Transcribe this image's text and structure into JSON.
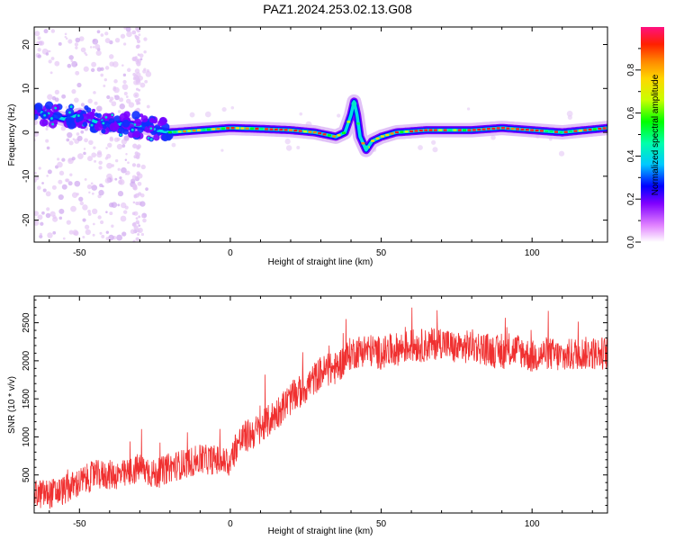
{
  "title": "PAZ1.2024.253.02.13.G08",
  "chart_data": [
    {
      "type": "heatmap",
      "xlabel": "Height of straight line (km)",
      "ylabel": "Frequency (Hz)",
      "xlim": [
        -65,
        125
      ],
      "ylim": [
        -25,
        24
      ],
      "xticks": [
        "-50",
        "0",
        "50",
        "100"
      ],
      "xtick_values": [
        -50,
        0,
        50,
        100
      ],
      "yticks": [
        "-20",
        "-10",
        "0",
        "10",
        "20"
      ],
      "ytick_values": [
        -20,
        -10,
        0,
        10,
        20
      ],
      "colorbar": {
        "label": "Normalized spectral amplitude",
        "ticks": [
          "0.0",
          "0.2",
          "0.4",
          "0.6",
          "0.8"
        ],
        "tick_values": [
          0.0,
          0.2,
          0.4,
          0.6,
          0.8
        ],
        "range": [
          0,
          1
        ]
      },
      "ridge": [
        {
          "x": -65,
          "f": 5.0
        },
        {
          "x": -60,
          "f": 4.0
        },
        {
          "x": -55,
          "f": 3.0
        },
        {
          "x": -50,
          "f": 4.0
        },
        {
          "x": -45,
          "f": 2.5
        },
        {
          "x": -40,
          "f": 1.5
        },
        {
          "x": -35,
          "f": 2.0
        },
        {
          "x": -30,
          "f": 1.5
        },
        {
          "x": -25,
          "f": 0.5
        },
        {
          "x": -20,
          "f": 0.0
        },
        {
          "x": -10,
          "f": 0.5
        },
        {
          "x": 0,
          "f": 1.0
        },
        {
          "x": 10,
          "f": 0.8
        },
        {
          "x": 20,
          "f": 0.5
        },
        {
          "x": 28,
          "f": 0.0
        },
        {
          "x": 35,
          "f": -1.0
        },
        {
          "x": 38,
          "f": 0.0
        },
        {
          "x": 40,
          "f": 4.0
        },
        {
          "x": 41,
          "f": 7.0
        },
        {
          "x": 42,
          "f": 4.0
        },
        {
          "x": 43,
          "f": -1.0
        },
        {
          "x": 45,
          "f": -4.0
        },
        {
          "x": 47,
          "f": -2.0
        },
        {
          "x": 50,
          "f": -1.0
        },
        {
          "x": 55,
          "f": 0.0
        },
        {
          "x": 65,
          "f": 0.5
        },
        {
          "x": 80,
          "f": 0.5
        },
        {
          "x": 90,
          "f": 1.0
        },
        {
          "x": 100,
          "f": 0.5
        },
        {
          "x": 110,
          "f": 0.0
        },
        {
          "x": 125,
          "f": 1.0
        }
      ]
    },
    {
      "type": "line",
      "xlabel": "Height of straight line (km)",
      "ylabel": "SNR (10 * v/v)",
      "xlim": [
        -65,
        125
      ],
      "ylim": [
        0,
        2850
      ],
      "xticks": [
        "-50",
        "0",
        "50",
        "100"
      ],
      "xtick_values": [
        -50,
        0,
        50,
        100
      ],
      "yticks": [
        "500",
        "1000",
        "1500",
        "2000",
        "2500"
      ],
      "ytick_values": [
        500,
        1000,
        1500,
        2000,
        2500
      ],
      "series": [
        {
          "color": "#f03030",
          "x": [
            -65,
            -60,
            -55,
            -50,
            -45,
            -40,
            -35,
            -30,
            -25,
            -20,
            -15,
            -10,
            -5,
            0,
            2,
            5,
            10,
            15,
            20,
            25,
            30,
            35,
            40,
            45,
            50,
            55,
            60,
            65,
            70,
            75,
            80,
            85,
            90,
            95,
            100,
            105,
            110,
            115,
            120,
            125
          ],
          "y": [
            250,
            250,
            300,
            400,
            500,
            500,
            500,
            600,
            500,
            600,
            650,
            700,
            700,
            650,
            900,
            1000,
            1100,
            1300,
            1500,
            1650,
            1850,
            1900,
            2100,
            2150,
            2100,
            2150,
            2200,
            2200,
            2250,
            2150,
            2200,
            2150,
            2100,
            2150,
            2050,
            2100,
            2050,
            2100,
            2100,
            2100
          ],
          "noise_amplitude": 220
        }
      ]
    }
  ]
}
